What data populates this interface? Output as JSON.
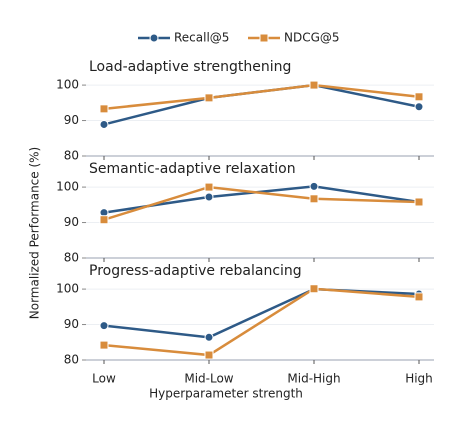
{
  "y_label": "Normalized Performance (%)",
  "chart_data": [
    {
      "type": "line",
      "title": "Load-adaptive strengthening",
      "ylim": [
        80,
        102
      ],
      "yticks": [
        80,
        90,
        100
      ],
      "grid": true,
      "series": [
        {
          "name": "Recall@5",
          "color": "#2e5a87",
          "marker": "circle",
          "values": [
            88.9,
            96.4,
            100,
            93.9
          ]
        },
        {
          "name": "NDCG@5",
          "color": "#d88c3c",
          "marker": "square",
          "values": [
            93.3,
            96.4,
            100,
            96.7
          ]
        }
      ]
    },
    {
      "type": "line",
      "title": "Semantic-adaptive relaxation",
      "ylim": [
        80,
        102
      ],
      "yticks": [
        80,
        90,
        100
      ],
      "grid": true,
      "series": [
        {
          "color": "#2e5a87",
          "marker": "circle",
          "values": [
            92.8,
            97.2,
            100.2,
            95.8
          ]
        },
        {
          "color": "#d88c3c",
          "marker": "square",
          "values": [
            90.8,
            100,
            96.7,
            95.8
          ]
        }
      ]
    },
    {
      "type": "line",
      "title": "Progress-adaptive rebalancing",
      "ylim": [
        80,
        102
      ],
      "yticks": [
        80,
        90,
        100
      ],
      "grid": true,
      "categories": [
        "Low",
        "Mid-Low",
        "Mid-High",
        "High"
      ],
      "xlabel": "Hyperparameter strength",
      "series": [
        {
          "color": "#2e5a87",
          "marker": "circle",
          "values": [
            89.7,
            86.4,
            100,
            98.6
          ]
        },
        {
          "color": "#d88c3c",
          "marker": "square",
          "values": [
            84.2,
            81.4,
            100.1,
            97.8
          ]
        }
      ]
    }
  ]
}
